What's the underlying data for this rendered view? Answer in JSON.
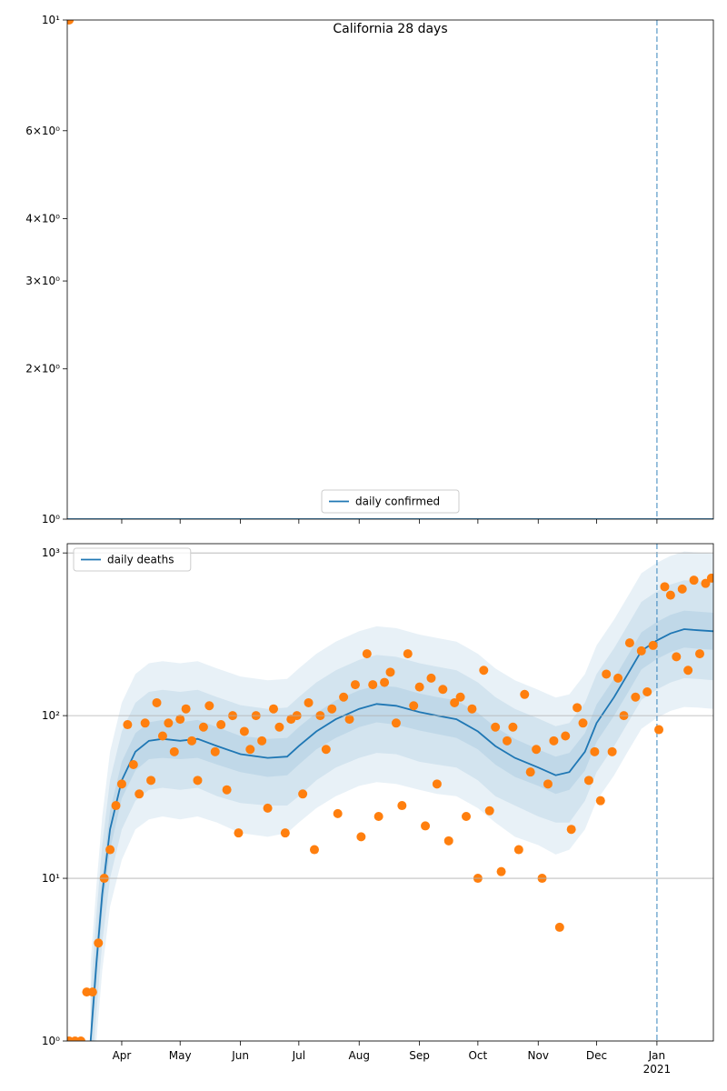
{
  "chart_data": [
    {
      "type": "line",
      "title": "California 28 days",
      "xlim": [
        "2020-03-04",
        "2021-01-30"
      ],
      "ylim": [
        1,
        10
      ],
      "log_y": true,
      "yticks": [
        {
          "value": 1,
          "label": "10⁰"
        },
        {
          "value": 2,
          "label": "2×10⁰"
        },
        {
          "value": 3,
          "label": "3×10⁰"
        },
        {
          "value": 4,
          "label": "4×10⁰"
        },
        {
          "value": 6,
          "label": "6×10⁰"
        },
        {
          "value": 10,
          "label": "10¹"
        }
      ],
      "grid": false,
      "legend": "lower center",
      "vline": "2021-01-01",
      "series": [
        {
          "name": "daily confirmed",
          "color": "#1f77b4",
          "x": [
            "2020-03-04",
            "2021-01-30"
          ],
          "values": [
            1,
            1
          ]
        }
      ],
      "points": {
        "color": "#ff7f0e",
        "x": [
          "2020-03-05"
        ],
        "values": [
          10
        ]
      }
    },
    {
      "type": "line",
      "xlim": [
        "2020-03-04",
        "2021-01-30"
      ],
      "ylim": [
        1,
        1140
      ],
      "log_y": true,
      "yticks": [
        {
          "value": 1,
          "label": "10⁰"
        },
        {
          "value": 10,
          "label": "10¹"
        },
        {
          "value": 100,
          "label": "10²"
        },
        {
          "value": 1000,
          "label": "10³"
        }
      ],
      "xticks": [
        {
          "value": "2020-04-01",
          "label": "Apr"
        },
        {
          "value": "2020-05-01",
          "label": "May"
        },
        {
          "value": "2020-06-01",
          "label": "Jun"
        },
        {
          "value": "2020-07-01",
          "label": "Jul"
        },
        {
          "value": "2020-08-01",
          "label": "Aug"
        },
        {
          "value": "2020-09-01",
          "label": "Sep"
        },
        {
          "value": "2020-10-01",
          "label": "Oct"
        },
        {
          "value": "2020-11-01",
          "label": "Nov"
        },
        {
          "value": "2020-12-01",
          "label": "Dec"
        },
        {
          "value": "2021-01-01",
          "label": "Jan\n2021"
        }
      ],
      "grid": true,
      "legend": "upper left",
      "vline": "2021-01-01",
      "series": [
        {
          "name": "daily deaths",
          "color": "#1f77b4",
          "x": [
            "2020-03-16",
            "2020-03-19",
            "2020-03-22",
            "2020-03-26",
            "2020-04-01",
            "2020-04-08",
            "2020-04-15",
            "2020-04-22",
            "2020-05-01",
            "2020-05-10",
            "2020-05-20",
            "2020-06-01",
            "2020-06-15",
            "2020-06-25",
            "2020-07-01",
            "2020-07-10",
            "2020-07-20",
            "2020-08-01",
            "2020-08-10",
            "2020-08-20",
            "2020-09-01",
            "2020-09-10",
            "2020-09-20",
            "2020-10-01",
            "2020-10-10",
            "2020-10-20",
            "2020-11-01",
            "2020-11-10",
            "2020-11-17",
            "2020-11-25",
            "2020-12-01",
            "2020-12-10",
            "2020-12-17",
            "2020-12-24",
            "2021-01-01",
            "2021-01-08",
            "2021-01-15",
            "2021-01-22",
            "2021-01-30"
          ],
          "values": [
            1,
            3,
            8,
            20,
            40,
            60,
            70,
            72,
            70,
            72,
            65,
            58,
            55,
            56,
            65,
            80,
            95,
            110,
            118,
            115,
            105,
            100,
            95,
            80,
            65,
            55,
            48,
            43,
            45,
            60,
            90,
            130,
            180,
            250,
            290,
            320,
            340,
            335,
            330
          ]
        }
      ],
      "bands": [
        {
          "color": "#1f77b4",
          "lower": [
            0.33,
            1,
            2.7,
            6.7,
            13,
            20,
            23,
            24,
            23,
            24,
            22,
            19,
            18,
            19,
            22,
            27,
            32,
            37,
            39,
            38,
            35,
            33,
            32,
            27,
            22,
            18,
            16,
            14,
            15,
            20,
            30,
            43,
            60,
            83,
            97,
            107,
            113,
            112,
            110
          ],
          "upper": [
            3,
            9,
            24,
            60,
            120,
            180,
            210,
            216,
            210,
            216,
            195,
            174,
            165,
            168,
            195,
            240,
            285,
            330,
            354,
            345,
            315,
            300,
            285,
            240,
            195,
            165,
            144,
            129,
            135,
            180,
            270,
            390,
            540,
            750,
            870,
            960,
            1020,
            1005,
            990
          ]
        },
        {
          "color": "#1f77b4",
          "lower": [
            0.5,
            1.5,
            4,
            10,
            20,
            30,
            35,
            36,
            35,
            36,
            32,
            29,
            28,
            28,
            32,
            40,
            48,
            55,
            59,
            58,
            52,
            50,
            48,
            40,
            32,
            28,
            24,
            22,
            22,
            30,
            45,
            65,
            90,
            125,
            145,
            160,
            170,
            168,
            165
          ],
          "upper": [
            2,
            6,
            16,
            40,
            80,
            120,
            140,
            144,
            140,
            144,
            130,
            116,
            110,
            112,
            130,
            160,
            190,
            220,
            236,
            230,
            210,
            200,
            190,
            160,
            130,
            110,
            96,
            86,
            90,
            120,
            180,
            260,
            360,
            500,
            580,
            640,
            680,
            670,
            660
          ]
        },
        {
          "color": "#1f77b4",
          "lower": [
            0.77,
            2.3,
            6.2,
            15,
            31,
            46,
            54,
            55,
            54,
            55,
            50,
            45,
            42,
            43,
            50,
            62,
            73,
            85,
            91,
            88,
            81,
            77,
            73,
            62,
            50,
            42,
            37,
            33,
            35,
            46,
            69,
            100,
            138,
            192,
            223,
            246,
            262,
            258,
            254
          ],
          "upper": [
            1.3,
            3.9,
            10,
            26,
            52,
            78,
            91,
            94,
            91,
            94,
            85,
            75,
            72,
            73,
            85,
            104,
            124,
            143,
            153,
            150,
            137,
            130,
            124,
            104,
            85,
            72,
            62,
            56,
            59,
            78,
            117,
            169,
            234,
            325,
            377,
            416,
            442,
            436,
            429
          ]
        }
      ],
      "points": {
        "color": "#ff7f0e",
        "x": [
          "2020-03-05",
          "2020-03-08",
          "2020-03-11",
          "2020-03-14",
          "2020-03-17",
          "2020-03-20",
          "2020-03-23",
          "2020-03-26",
          "2020-03-29",
          "2020-04-01",
          "2020-04-04",
          "2020-04-07",
          "2020-04-10",
          "2020-04-13",
          "2020-04-16",
          "2020-04-19",
          "2020-04-22",
          "2020-04-25",
          "2020-04-28",
          "2020-05-01",
          "2020-05-04",
          "2020-05-07",
          "2020-05-10",
          "2020-05-13",
          "2020-05-16",
          "2020-05-19",
          "2020-05-22",
          "2020-05-25",
          "2020-05-28",
          "2020-05-31",
          "2020-06-03",
          "2020-06-06",
          "2020-06-09",
          "2020-06-12",
          "2020-06-15",
          "2020-06-18",
          "2020-06-21",
          "2020-06-24",
          "2020-06-27",
          "2020-06-30",
          "2020-07-03",
          "2020-07-06",
          "2020-07-09",
          "2020-07-12",
          "2020-07-15",
          "2020-07-18",
          "2020-07-21",
          "2020-07-24",
          "2020-07-27",
          "2020-07-30",
          "2020-08-02",
          "2020-08-05",
          "2020-08-08",
          "2020-08-11",
          "2020-08-14",
          "2020-08-17",
          "2020-08-20",
          "2020-08-23",
          "2020-08-26",
          "2020-08-29",
          "2020-09-01",
          "2020-09-04",
          "2020-09-07",
          "2020-09-10",
          "2020-09-13",
          "2020-09-16",
          "2020-09-19",
          "2020-09-22",
          "2020-09-25",
          "2020-09-28",
          "2020-10-01",
          "2020-10-04",
          "2020-10-07",
          "2020-10-10",
          "2020-10-13",
          "2020-10-16",
          "2020-10-19",
          "2020-10-22",
          "2020-10-25",
          "2020-10-28",
          "2020-10-31",
          "2020-11-03",
          "2020-11-06",
          "2020-11-09",
          "2020-11-12",
          "2020-11-15",
          "2020-11-18",
          "2020-11-21",
          "2020-11-24",
          "2020-11-27",
          "2020-11-30",
          "2020-12-03",
          "2020-12-06",
          "2020-12-09",
          "2020-12-12",
          "2020-12-15",
          "2020-12-18",
          "2020-12-21",
          "2020-12-24",
          "2020-12-27",
          "2020-12-30",
          "2021-01-02",
          "2021-01-05",
          "2021-01-08",
          "2021-01-11",
          "2021-01-14",
          "2021-01-17",
          "2021-01-20",
          "2021-01-23",
          "2021-01-26",
          "2021-01-29"
        ],
        "values": [
          1,
          1,
          1,
          2,
          2,
          4,
          10,
          15,
          28,
          38,
          88,
          50,
          33,
          90,
          40,
          120,
          75,
          90,
          60,
          95,
          110,
          70,
          40,
          85,
          115,
          60,
          88,
          35,
          100,
          19,
          80,
          62,
          100,
          70,
          27,
          110,
          85,
          19,
          95,
          100,
          33,
          120,
          15,
          100,
          62,
          110,
          25,
          130,
          95,
          155,
          18,
          240,
          155,
          24,
          160,
          185,
          90,
          28,
          240,
          115,
          150,
          21,
          170,
          38,
          145,
          17,
          120,
          130,
          24,
          110,
          10,
          190,
          26,
          85,
          11,
          70,
          85,
          15,
          135,
          45,
          62,
          10,
          38,
          70,
          5,
          75,
          20,
          112,
          90,
          40,
          60,
          30,
          180,
          60,
          170,
          100,
          280,
          130,
          250,
          140,
          270,
          82,
          620,
          550,
          230,
          600,
          190,
          680,
          240,
          650,
          700
        ]
      }
    }
  ]
}
